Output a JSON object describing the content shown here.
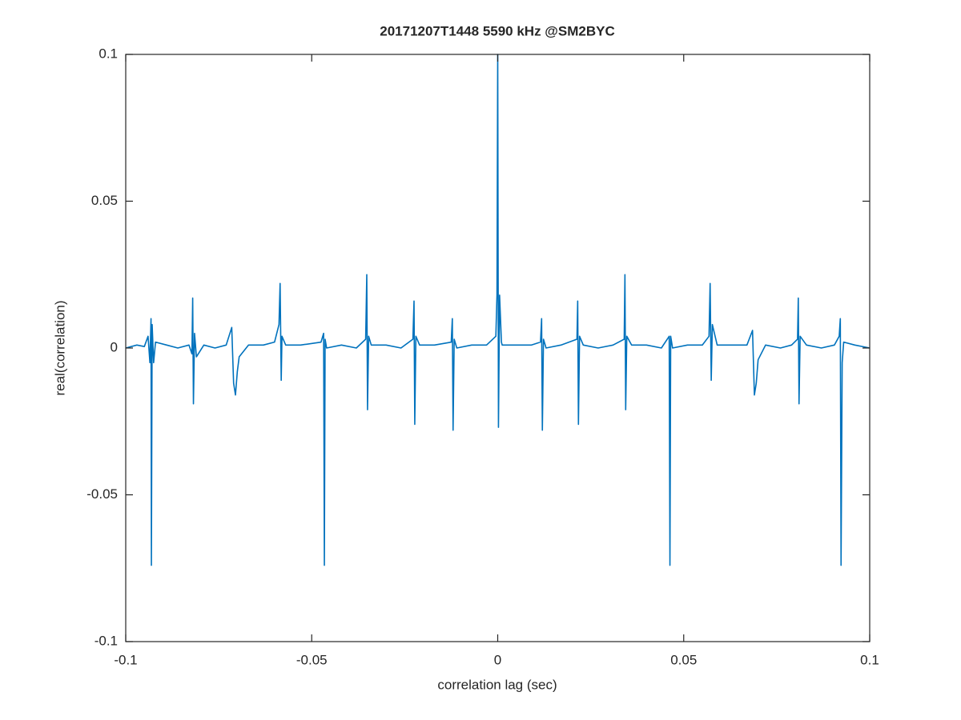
{
  "chart_data": {
    "type": "line",
    "title": "20171207T1448 5590 kHz @SM2BYC",
    "x_label": "correlation lag (sec)",
    "y_label": "real(correlation)",
    "color": "#0072bd",
    "xlim": [
      -0.1,
      0.1
    ],
    "ylim": [
      -0.1,
      0.1
    ],
    "xticks": [
      -0.1,
      -0.05,
      0,
      0.05,
      0.1
    ],
    "yticks": [
      -0.1,
      -0.05,
      0,
      0.05,
      0.1
    ],
    "grid": false,
    "x": [
      -0.1,
      -0.097,
      -0.095,
      -0.094,
      -0.0935,
      -0.0932,
      -0.0931,
      -0.0929,
      -0.0925,
      -0.092,
      -0.089,
      -0.086,
      -0.083,
      -0.0822,
      -0.082,
      -0.0818,
      -0.0815,
      -0.081,
      -0.079,
      -0.076,
      -0.073,
      -0.0715,
      -0.071,
      -0.0705,
      -0.07,
      -0.0695,
      -0.067,
      -0.063,
      -0.06,
      -0.0588,
      -0.0585,
      -0.0582,
      -0.058,
      -0.057,
      -0.053,
      -0.0475,
      -0.0468,
      -0.0466,
      -0.0464,
      -0.046,
      -0.042,
      -0.038,
      -0.0355,
      -0.0352,
      -0.035,
      -0.0347,
      -0.034,
      -0.03,
      -0.026,
      -0.0228,
      -0.0225,
      -0.0223,
      -0.022,
      -0.021,
      -0.017,
      -0.0125,
      -0.0122,
      -0.012,
      -0.0117,
      -0.011,
      -0.007,
      -0.003,
      -0.0005,
      -0.0002,
      0,
      0.0002,
      0.0005,
      0.001,
      0.0012,
      0.005,
      0.009,
      0.0115,
      0.0118,
      0.012,
      0.0123,
      0.013,
      0.017,
      0.0213,
      0.0215,
      0.0217,
      0.022,
      0.023,
      0.027,
      0.031,
      0.034,
      0.0342,
      0.0344,
      0.0347,
      0.036,
      0.04,
      0.044,
      0.0461,
      0.0463,
      0.0465,
      0.047,
      0.051,
      0.055,
      0.0568,
      0.0571,
      0.0574,
      0.0577,
      0.059,
      0.063,
      0.067,
      0.0685,
      0.069,
      0.0695,
      0.07,
      0.072,
      0.076,
      0.079,
      0.0806,
      0.0808,
      0.081,
      0.0813,
      0.083,
      0.087,
      0.0905,
      0.0918,
      0.0921,
      0.0923,
      0.0926,
      0.093,
      0.096,
      0.1
    ],
    "values": [
      0,
      0.001,
      0.0005,
      0.004,
      -0.005,
      0.01,
      -0.074,
      0.008,
      -0.005,
      0.002,
      0.001,
      0,
      0.001,
      -0.002,
      0.017,
      -0.019,
      0.005,
      -0.003,
      0.001,
      0,
      0.001,
      0.007,
      -0.012,
      -0.016,
      -0.008,
      -0.003,
      0.001,
      0.001,
      0.002,
      0.008,
      0.022,
      -0.011,
      0.004,
      0.001,
      0.001,
      0.002,
      0.005,
      -0.074,
      0.003,
      0,
      0.001,
      0,
      0.003,
      0.025,
      -0.021,
      0.004,
      0.001,
      0.001,
      0,
      0.003,
      0.016,
      -0.026,
      0.004,
      0.001,
      0.001,
      0.002,
      0.01,
      -0.028,
      0.003,
      0,
      0.001,
      0.001,
      0.004,
      0.018,
      0.1,
      -0.027,
      0.018,
      0.002,
      0.001,
      0.001,
      0.001,
      0.002,
      0.01,
      -0.028,
      0.003,
      0,
      0.001,
      0.003,
      0.016,
      -0.026,
      0.004,
      0.001,
      0,
      0.001,
      0.003,
      0.025,
      -0.021,
      0.004,
      0.001,
      0.001,
      0,
      0.004,
      -0.074,
      0.004,
      0,
      0.001,
      0.001,
      0.004,
      0.022,
      -0.011,
      0.008,
      0.001,
      0.001,
      0.001,
      0.006,
      -0.016,
      -0.012,
      -0.004,
      0.001,
      0,
      0.001,
      0.003,
      0.017,
      -0.019,
      0.004,
      0.001,
      0,
      0.001,
      0.004,
      0.01,
      -0.074,
      -0.005,
      0.002,
      0.001,
      0
    ]
  }
}
